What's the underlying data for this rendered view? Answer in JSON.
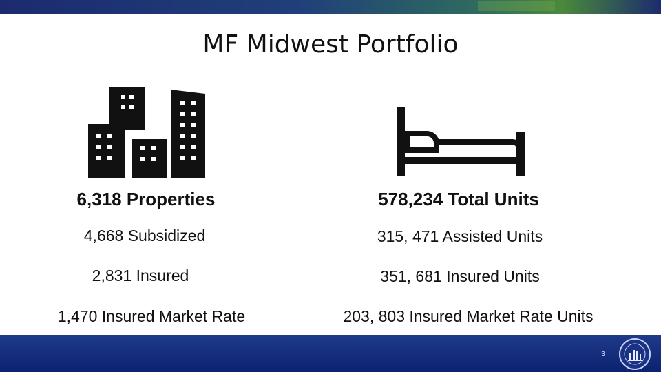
{
  "slide": {
    "title": "MF Midwest Portfolio",
    "page_number": "3"
  },
  "properties": {
    "headline": "6,318 Properties",
    "lines": [
      "4,668 Subsidized",
      "2,831 Insured",
      "1,470 Insured Market Rate"
    ]
  },
  "units": {
    "headline": "578,234 Total Units",
    "lines": [
      "315, 471 Assisted Units",
      "351, 681 Insured Units",
      "203, 803 Insured Market Rate Units"
    ]
  },
  "icons": {
    "left": "city-buildings-icon",
    "right": "bed-icon",
    "seal": "hud-seal-icon"
  },
  "colors": {
    "header_bar": "#1c2b6e",
    "footer_bar": "#0c2270",
    "text": "#111111"
  }
}
